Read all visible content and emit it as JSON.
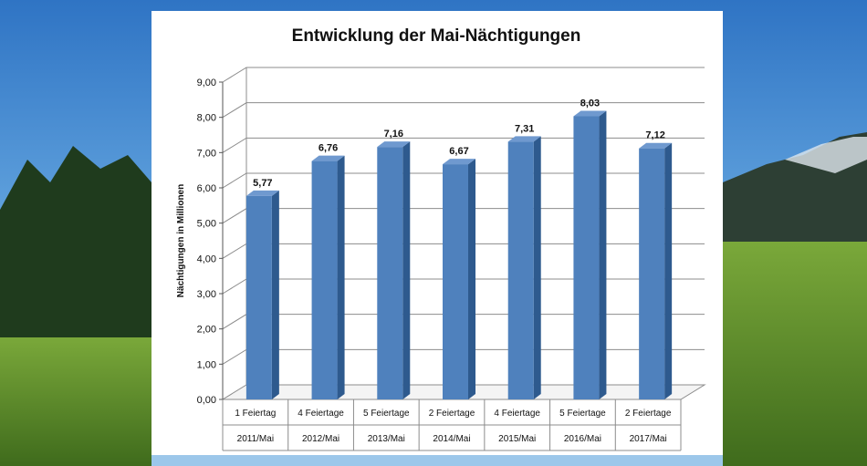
{
  "chart_data": {
    "type": "bar",
    "title": "Entwicklung der Mai-Nächtigungen",
    "ylabel": "Nächtigungen in Millionen",
    "xlabel": "",
    "ylim": [
      0,
      9
    ],
    "yticks": [
      "0,00",
      "1,00",
      "2,00",
      "3,00",
      "4,00",
      "5,00",
      "6,00",
      "7,00",
      "8,00",
      "9,00"
    ],
    "categories": [
      {
        "holidays": "1 Feiertag",
        "period": "2011/Mai"
      },
      {
        "holidays": "4 Feiertage",
        "period": "2012/Mai"
      },
      {
        "holidays": "5 Feiertage",
        "period": "2013/Mai"
      },
      {
        "holidays": "2 Feiertage",
        "period": "2014/Mai"
      },
      {
        "holidays": "4 Feiertage",
        "period": "2015/Mai"
      },
      {
        "holidays": "5 Feiertage",
        "period": "2016/Mai"
      },
      {
        "holidays": "2 Feiertage",
        "period": "2017/Mai"
      }
    ],
    "values": [
      5.77,
      6.76,
      7.16,
      6.67,
      7.31,
      8.03,
      7.12
    ],
    "value_labels": [
      "5,77",
      "6,76",
      "7,16",
      "6,67",
      "7,31",
      "8,03",
      "7,12"
    ],
    "grid": true,
    "colors": {
      "bar_front": "#4f81bd",
      "bar_side": "#2e5a8e",
      "bar_top": "#6f99cf",
      "grid": "#8c8c8c"
    }
  }
}
